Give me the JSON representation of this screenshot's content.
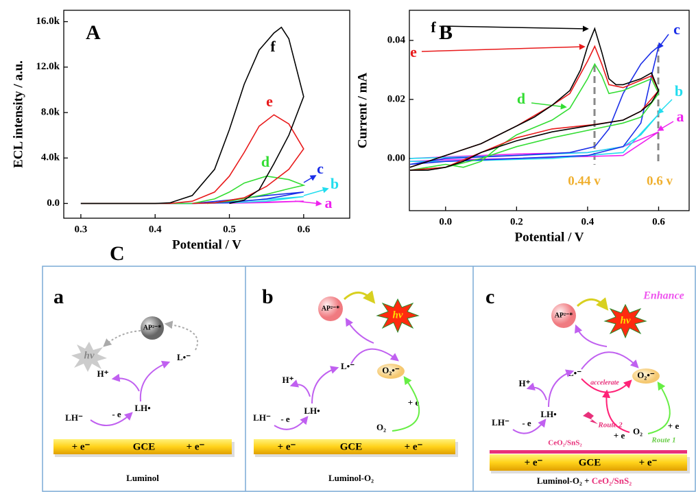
{
  "chart_data": [
    {
      "type": "line",
      "label": "A",
      "xlabel": "Potential / V",
      "ylabel": "ECL intensity / a.u.",
      "xlim": [
        0.277,
        0.662
      ],
      "ylim": [
        -1300,
        17000
      ],
      "xticks": [
        0.3,
        0.4,
        0.5,
        0.6
      ],
      "yticks": [
        {
          "value": 0,
          "label": "0.0"
        },
        {
          "value": 4000,
          "label": "4.0k"
        },
        {
          "value": 8000,
          "label": "8.0k"
        },
        {
          "value": 12000,
          "label": "12.0k"
        },
        {
          "value": 16000,
          "label": "16.0k"
        }
      ],
      "series": [
        {
          "name": "a",
          "color": "#ee22ee",
          "x": [
            0.3,
            0.45,
            0.5,
            0.55,
            0.6,
            0.55,
            0.5,
            0.45
          ],
          "values": [
            0,
            0,
            50,
            120,
            200,
            80,
            20,
            0
          ]
        },
        {
          "name": "b",
          "color": "#22ddee",
          "x": [
            0.3,
            0.45,
            0.5,
            0.55,
            0.6,
            0.55,
            0.5,
            0.45
          ],
          "values": [
            0,
            0,
            150,
            350,
            600,
            200,
            50,
            0
          ]
        },
        {
          "name": "c",
          "color": "#1a2ee8",
          "x": [
            0.3,
            0.45,
            0.5,
            0.55,
            0.6,
            0.55,
            0.5,
            0.45
          ],
          "values": [
            0,
            0,
            300,
            700,
            1000,
            400,
            100,
            0
          ]
        },
        {
          "name": "d",
          "color": "#33dd33",
          "x": [
            0.3,
            0.45,
            0.48,
            0.5,
            0.52,
            0.55,
            0.58,
            0.6,
            0.58,
            0.55,
            0.5,
            0.47
          ],
          "values": [
            0,
            0,
            400,
            1000,
            1800,
            2400,
            2100,
            1600,
            1300,
            800,
            200,
            0
          ]
        },
        {
          "name": "e",
          "color": "#e8191a",
          "x": [
            0.3,
            0.42,
            0.45,
            0.48,
            0.5,
            0.52,
            0.54,
            0.56,
            0.58,
            0.6,
            0.58,
            0.55,
            0.52,
            0.48,
            0.45
          ],
          "values": [
            0,
            0,
            200,
            1000,
            2400,
            4500,
            6800,
            7800,
            7000,
            4800,
            3000,
            1500,
            500,
            50,
            0
          ]
        },
        {
          "name": "f",
          "color": "#000000",
          "x": [
            0.3,
            0.4,
            0.42,
            0.45,
            0.48,
            0.5,
            0.52,
            0.54,
            0.56,
            0.57,
            0.58,
            0.6,
            0.58,
            0.56,
            0.54,
            0.52,
            0.5
          ],
          "values": [
            0,
            0,
            50,
            700,
            3000,
            6500,
            10500,
            13500,
            15000,
            15500,
            14500,
            9400,
            6000,
            3500,
            1200,
            300,
            0
          ]
        }
      ]
    },
    {
      "type": "line",
      "label": "B",
      "xlabel": "Potential / V",
      "ylabel": "Current / mA",
      "xlim": [
        -0.102,
        0.686
      ],
      "ylim": [
        -0.0177,
        0.0502
      ],
      "xticks": [
        {
          "value": 0,
          "label": "0.0"
        },
        0.2,
        0.4,
        0.6
      ],
      "yticks": [
        {
          "value": 0,
          "label": "0.00"
        },
        {
          "value": 0.02,
          "label": "0.02"
        },
        {
          "value": 0.04,
          "label": "0.04"
        }
      ],
      "annotations": [
        "0.44 v",
        "0.6 v"
      ],
      "series": [
        {
          "name": "a",
          "color": "#ee22ee",
          "x": [
            -0.1,
            0.2,
            0.4,
            0.5,
            0.6,
            0.5,
            0.2,
            0,
            -0.1
          ],
          "values": [
            0,
            0.0015,
            0.002,
            0.004,
            0.009,
            0.001,
            0,
            -0.0005,
            -0.001
          ]
        },
        {
          "name": "b",
          "color": "#22ddee",
          "x": [
            -0.1,
            0.2,
            0.4,
            0.5,
            0.55,
            0.6,
            0.5,
            0.3,
            0,
            -0.1
          ],
          "values": [
            0,
            0.001,
            0.002,
            0.004,
            0.008,
            0.015,
            0.002,
            0,
            -0.001,
            -0.001
          ]
        },
        {
          "name": "c",
          "color": "#1a2ee8",
          "x": [
            -0.1,
            0,
            0.2,
            0.35,
            0.42,
            0.46,
            0.5,
            0.55,
            0.58,
            0.6,
            0.58,
            0.55,
            0.5,
            0.4,
            0.2,
            0,
            -0.1
          ],
          "values": [
            -0.002,
            0,
            0.001,
            0.002,
            0.004,
            0.01,
            0.022,
            0.032,
            0.036,
            0.038,
            0.028,
            0.012,
            0.004,
            0.001,
            0,
            -0.001,
            -0.002
          ]
        },
        {
          "name": "d",
          "color": "#33dd33",
          "x": [
            -0.1,
            0,
            0.05,
            0.1,
            0.15,
            0.2,
            0.3,
            0.35,
            0.4,
            0.42,
            0.44,
            0.46,
            0.5,
            0.58,
            0.6,
            0.55,
            0.5,
            0.42,
            0.3,
            0.2,
            0.1,
            0,
            -0.1
          ],
          "values": [
            -0.004,
            -0.002,
            -0.003,
            -0.001,
            0.004,
            0.008,
            0.013,
            0.017,
            0.027,
            0.032,
            0.028,
            0.022,
            0.023,
            0.027,
            0.022,
            0.014,
            0.012,
            0.01,
            0.007,
            0.004,
            0,
            -0.003,
            -0.004
          ]
        },
        {
          "name": "e",
          "color": "#e8191a",
          "x": [
            -0.1,
            0,
            0.1,
            0.2,
            0.3,
            0.35,
            0.4,
            0.42,
            0.44,
            0.46,
            0.5,
            0.58,
            0.6,
            0.55,
            0.5,
            0.42,
            0.3,
            0.2,
            0.1,
            0,
            -0.1
          ],
          "values": [
            -0.003,
            0.001,
            0.005,
            0.011,
            0.018,
            0.022,
            0.033,
            0.038,
            0.032,
            0.025,
            0.024,
            0.028,
            0.023,
            0.016,
            0.013,
            0.0115,
            0.01,
            0.007,
            0.002,
            -0.003,
            -0.004
          ]
        },
        {
          "name": "f",
          "color": "#000000",
          "x": [
            -0.1,
            -0.05,
            0,
            0.05,
            0.1,
            0.15,
            0.2,
            0.25,
            0.3,
            0.35,
            0.38,
            0.4,
            0.42,
            0.44,
            0.46,
            0.48,
            0.5,
            0.55,
            0.58,
            0.6,
            0.58,
            0.55,
            0.5,
            0.45,
            0.4,
            0.3,
            0.2,
            0.1,
            0.05,
            0,
            -0.05,
            -0.1
          ],
          "values": [
            -0.003,
            -0.001,
            0.001,
            0.003,
            0.005,
            0.008,
            0.011,
            0.014,
            0.018,
            0.023,
            0.03,
            0.038,
            0.044,
            0.036,
            0.027,
            0.025,
            0.025,
            0.027,
            0.029,
            0.023,
            0.019,
            0.016,
            0.013,
            0.012,
            0.011,
            0.009,
            0.006,
            0.002,
            -0.001,
            -0.003,
            -0.004,
            -0.004
          ]
        }
      ]
    }
  ],
  "diagram": {
    "label": "C",
    "panels": [
      {
        "label": "a",
        "ap": "AP²⁻*",
        "hv": "hν",
        "l_radical": "L•⁻",
        "h_plus": "H⁺",
        "lh_radical": "LH•",
        "lh_minus": "LH⁻",
        "minus_e": "- e",
        "electrode": [
          "+ e⁻",
          "GCE",
          "+ e⁻"
        ],
        "caption": [
          "Luminol"
        ]
      },
      {
        "label": "b",
        "ap": "AP²⁻*",
        "hv": "hν",
        "l_radical": "L•⁻",
        "h_plus": "H⁺",
        "lh_radical": "LH•",
        "lh_minus": "LH⁻",
        "minus_e": "- e",
        "o2_radical": "O₂•⁻",
        "plus_e": "+ e",
        "o2": "O₂",
        "electrode": [
          "+ e⁻",
          "GCE",
          "+ e⁻"
        ],
        "caption": [
          "Luminol-O₂"
        ]
      },
      {
        "label": "c",
        "enhance": "Enhance",
        "ap": "AP²⁻*",
        "hv": "hν",
        "l_radical": "L•⁻",
        "accelerate": "accelerate",
        "h_plus": "H⁺",
        "lh_radical": "LH•",
        "lh_minus": "LH⁻",
        "minus_e": "- e",
        "o2_radical": "O₂•⁻",
        "route2": "Route 2",
        "plus_e2": "+ e",
        "route1": "Route 1",
        "plus_e": "+ e",
        "o2": "O₂",
        "catalyst": "CeO₂/SnS₂",
        "electrode": [
          "+ e⁻",
          "GCE",
          "+ e⁻"
        ],
        "caption": [
          "Luminol-O₂ +",
          "CeO₂/SnS₂"
        ]
      }
    ]
  }
}
